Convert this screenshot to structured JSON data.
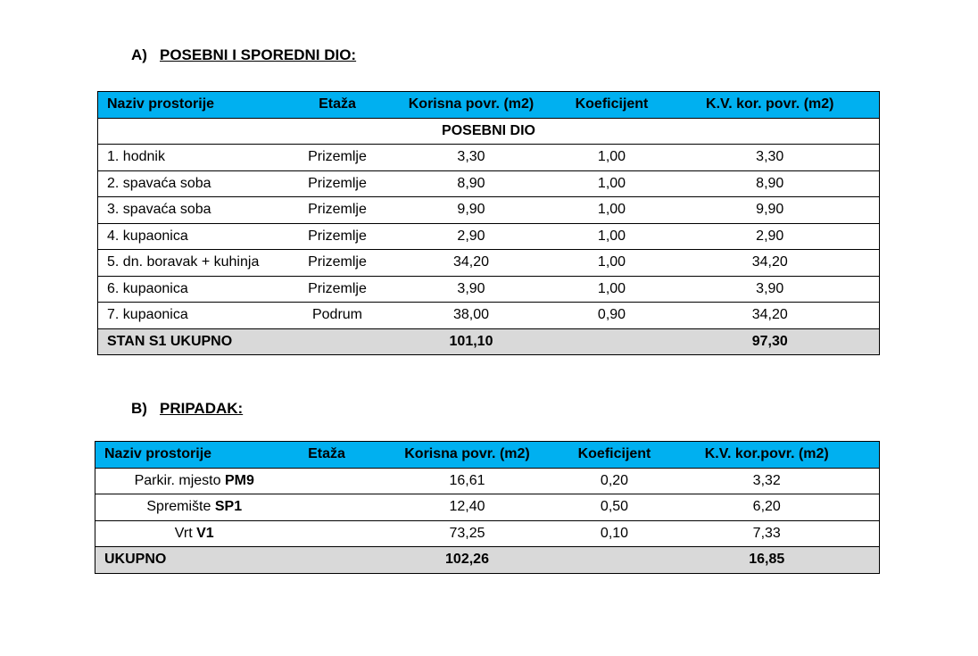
{
  "section_a": {
    "label": "A)",
    "title": "POSEBNI I SPOREDNI DIO:",
    "table": {
      "header": [
        "Naziv prostorije",
        "Etaža",
        "Korisna povr. (m2)",
        "Koeficijent",
        "K.V. kor. povr. (m2)"
      ],
      "subheader": "POSEBNI DIO",
      "rows": [
        {
          "name": "1. hodnik",
          "floor": "Prizemlje",
          "area": "3,30",
          "coefficient": "1,00",
          "weighted": "3,30"
        },
        {
          "name": "2. spavaća soba",
          "floor": "Prizemlje",
          "area": "8,90",
          "coefficient": "1,00",
          "weighted": "8,90"
        },
        {
          "name": "3. spavaća soba",
          "floor": "Prizemlje",
          "area": "9,90",
          "coefficient": "1,00",
          "weighted": "9,90"
        },
        {
          "name": "4. kupaonica",
          "floor": "Prizemlje",
          "area": "2,90",
          "coefficient": "1,00",
          "weighted": "2,90"
        },
        {
          "name": "5. dn. boravak + kuhinja",
          "floor": "Prizemlje",
          "area": "34,20",
          "coefficient": "1,00",
          "weighted": "34,20"
        },
        {
          "name": "6. kupaonica",
          "floor": "Prizemlje",
          "area": "3,90",
          "coefficient": "1,00",
          "weighted": "3,90"
        },
        {
          "name": "7. kupaonica",
          "floor": "Podrum",
          "area": "38,00",
          "coefficient": "0,90",
          "weighted": "34,20"
        }
      ],
      "total": {
        "name": "STAN S1 UKUPNO",
        "area": "101,10",
        "weighted": "97,30"
      }
    }
  },
  "section_b": {
    "label": "B)",
    "title": "PRIPADAK:",
    "table": {
      "header": [
        "Naziv prostorije",
        "Etaža",
        "Korisna povr. (m2)",
        "Koeficijent",
        "K.V. kor.povr. (m2)"
      ],
      "rows": [
        {
          "name": "Parkir. mjesto",
          "code": "PM9",
          "area": "16,61",
          "coefficient": "0,20",
          "weighted": "3,32"
        },
        {
          "name": "Spremište",
          "code": "SP1",
          "area": "12,40",
          "coefficient": "0,50",
          "weighted": "6,20"
        },
        {
          "name": "Vrt",
          "code": "V1",
          "area": "73,25",
          "coefficient": "0,10",
          "weighted": "7,33"
        }
      ],
      "total": {
        "name": "UKUPNO",
        "area": "102,26",
        "weighted": "16,85"
      }
    }
  }
}
